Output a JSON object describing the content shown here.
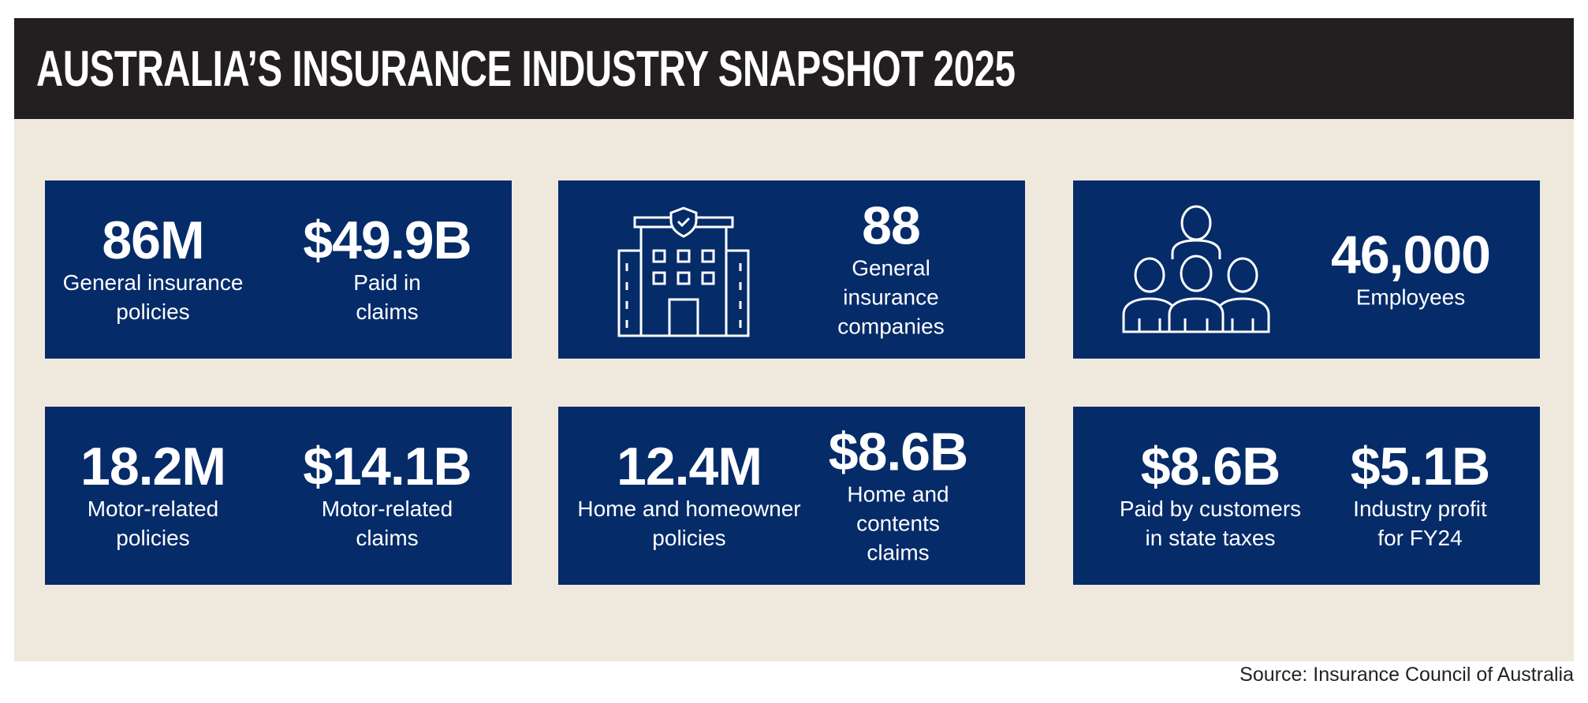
{
  "header": {
    "title": "AUSTRALIA’S INSURANCE INDUSTRY SNAPSHOT 2025"
  },
  "cards": [
    {
      "stats": [
        {
          "value": "86M",
          "label": "General insurance\npolicies"
        },
        {
          "value": "$49.9B",
          "label": "Paid in\nclaims"
        }
      ]
    },
    {
      "stats": [
        {
          "value": "88",
          "label": "General insurance\ncompanies"
        }
      ]
    },
    {
      "stats": [
        {
          "value": "46,000",
          "label": "Employees"
        }
      ]
    },
    {
      "stats": [
        {
          "value": "18.2M",
          "label": "Motor-related\npolicies"
        },
        {
          "value": "$14.1B",
          "label": "Motor-related\nclaims"
        }
      ]
    },
    {
      "stats": [
        {
          "value": "12.4M",
          "label": "Home and homeowner\npolicies"
        },
        {
          "value": "$8.6B",
          "label": "Home and\ncontents claims"
        }
      ]
    },
    {
      "stats": [
        {
          "value": "$8.6B",
          "label": "Paid by customers\nin state taxes"
        },
        {
          "value": "$5.1B",
          "label": "Industry profit\nfor FY24"
        }
      ]
    }
  ],
  "source": "Source: Insurance Council of Australia"
}
